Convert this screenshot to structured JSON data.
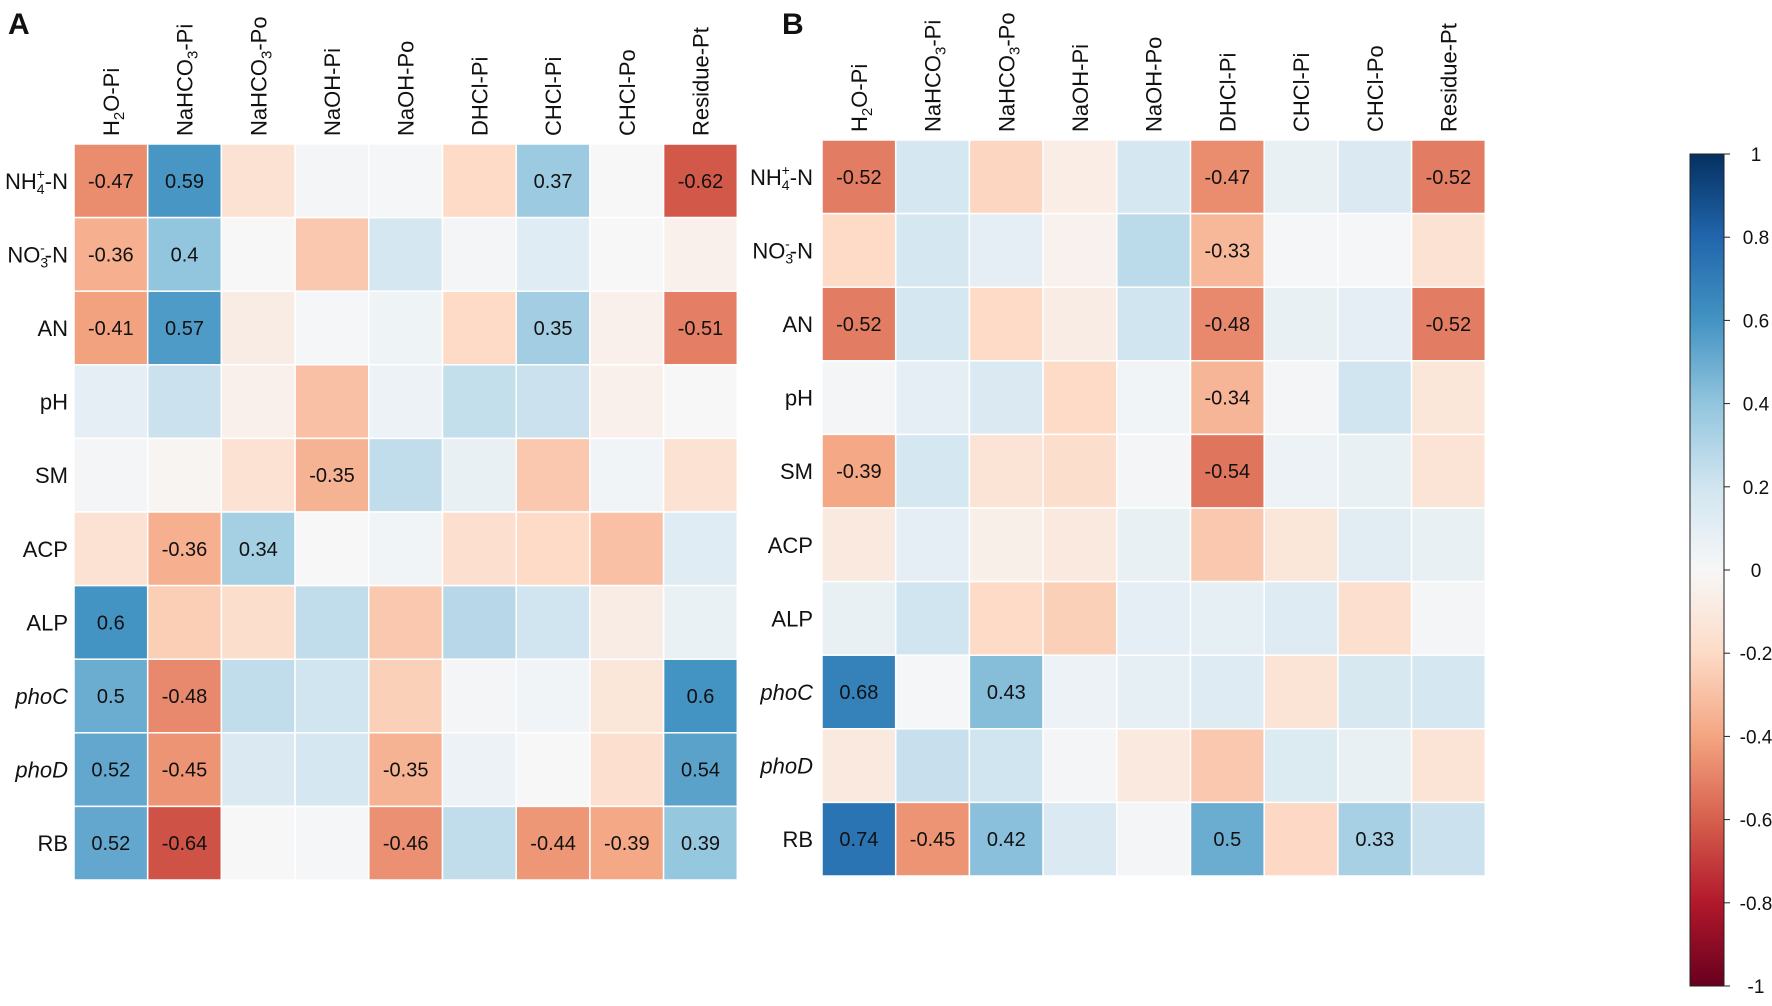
{
  "panels": [
    {
      "panel_label": "A",
      "chart_data": {
        "type": "heatmap",
        "title": "",
        "columns": [
          "H2O-Pi",
          "NaHCO3-Pi",
          "NaHCO3-Po",
          "NaOH-Pi",
          "NaOH-Po",
          "DHCl-Pi",
          "CHCl-Pi",
          "CHCl-Po",
          "Residue-Pt"
        ],
        "rows": [
          "NH4+-N",
          "NO3--N",
          "AN",
          "pH",
          "SM",
          "ACP",
          "ALP",
          "phoC",
          "phoD",
          "RB"
        ],
        "values": [
          [
            -0.47,
            0.59,
            -0.15,
            0.02,
            0.01,
            -0.2,
            0.37,
            0.0,
            -0.62
          ],
          [
            -0.36,
            0.4,
            0.0,
            -0.27,
            0.18,
            0.02,
            0.12,
            0.0,
            -0.05
          ],
          [
            -0.41,
            0.57,
            -0.08,
            0.01,
            0.05,
            -0.2,
            0.35,
            -0.05,
            -0.51
          ],
          [
            0.1,
            0.22,
            -0.05,
            -0.3,
            0.06,
            0.24,
            0.22,
            -0.05,
            0.0
          ],
          [
            0.02,
            -0.02,
            -0.15,
            -0.35,
            0.25,
            0.08,
            -0.27,
            0.03,
            -0.15
          ],
          [
            -0.15,
            -0.36,
            0.34,
            0.0,
            0.03,
            -0.17,
            -0.2,
            -0.3,
            0.12
          ],
          [
            0.6,
            -0.25,
            -0.18,
            0.25,
            -0.27,
            0.28,
            0.2,
            -0.08,
            0.07
          ],
          [
            0.5,
            -0.48,
            0.25,
            0.2,
            -0.24,
            0.02,
            0.03,
            -0.12,
            0.6
          ],
          [
            0.52,
            -0.45,
            0.15,
            0.18,
            -0.35,
            0.06,
            0.0,
            -0.17,
            0.54
          ],
          [
            0.52,
            -0.64,
            0.0,
            0.01,
            -0.46,
            0.25,
            -0.44,
            -0.39,
            0.39
          ]
        ],
        "labeled_cells_note": "numbers shown only where printed in the figure",
        "colorbar": {
          "ticks": [
            1,
            0.8,
            0.6,
            0.4,
            0.2,
            0,
            -0.2,
            -0.4,
            -0.6,
            -0.8,
            -1
          ],
          "range": [
            -1,
            1
          ]
        }
      },
      "shown_labels": [
        [
          true,
          true,
          false,
          false,
          false,
          false,
          true,
          false,
          true
        ],
        [
          true,
          true,
          false,
          false,
          false,
          false,
          false,
          false,
          false
        ],
        [
          true,
          true,
          false,
          false,
          false,
          false,
          true,
          false,
          true
        ],
        [
          false,
          false,
          false,
          false,
          false,
          false,
          false,
          false,
          false
        ],
        [
          false,
          false,
          false,
          true,
          false,
          false,
          false,
          false,
          false
        ],
        [
          false,
          true,
          true,
          false,
          false,
          false,
          false,
          false,
          false
        ],
        [
          true,
          false,
          false,
          false,
          false,
          false,
          false,
          false,
          false
        ],
        [
          true,
          true,
          false,
          false,
          false,
          false,
          false,
          false,
          true
        ],
        [
          true,
          true,
          false,
          false,
          true,
          false,
          false,
          false,
          true
        ],
        [
          true,
          true,
          false,
          false,
          true,
          false,
          true,
          true,
          true
        ]
      ]
    },
    {
      "panel_label": "B",
      "chart_data": {
        "type": "heatmap",
        "title": "",
        "columns": [
          "H2O-Pi",
          "NaHCO3-Pi",
          "NaHCO3-Po",
          "NaOH-Pi",
          "NaOH-Po",
          "DHCl-Pi",
          "CHCl-Pi",
          "CHCl-Po",
          "Residue-Pt"
        ],
        "rows": [
          "NH4+-N",
          "NO3--N",
          "AN",
          "pH",
          "SM",
          "ACP",
          "ALP",
          "phoC",
          "phoD",
          "RB"
        ],
        "values": [
          [
            -0.52,
            0.18,
            -0.22,
            -0.07,
            0.18,
            -0.47,
            0.08,
            0.15,
            -0.52
          ],
          [
            -0.2,
            0.18,
            0.1,
            -0.04,
            0.27,
            -0.33,
            0.01,
            0.01,
            -0.15
          ],
          [
            -0.52,
            0.18,
            -0.2,
            -0.08,
            0.2,
            -0.48,
            0.08,
            0.1,
            -0.52
          ],
          [
            0.02,
            0.1,
            0.15,
            -0.2,
            0.03,
            -0.34,
            0.02,
            0.2,
            -0.12
          ],
          [
            -0.39,
            0.18,
            -0.14,
            -0.18,
            0.02,
            -0.54,
            0.06,
            0.08,
            -0.14
          ],
          [
            -0.1,
            0.1,
            -0.06,
            -0.1,
            0.08,
            -0.27,
            -0.12,
            0.11,
            0.08
          ],
          [
            0.08,
            0.2,
            -0.2,
            -0.24,
            0.1,
            0.09,
            0.13,
            -0.17,
            0.02
          ],
          [
            0.68,
            0.01,
            0.43,
            0.06,
            0.09,
            0.13,
            -0.14,
            0.17,
            0.18
          ],
          [
            -0.1,
            0.23,
            0.2,
            0.02,
            -0.1,
            -0.27,
            0.14,
            0.08,
            -0.14
          ],
          [
            0.74,
            -0.45,
            0.42,
            0.15,
            0.02,
            0.5,
            -0.21,
            0.33,
            0.22
          ]
        ],
        "labeled_cells_note": "numbers shown only where printed in the figure",
        "colorbar": {
          "ticks": [
            1,
            0.8,
            0.6,
            0.4,
            0.2,
            0,
            -0.2,
            -0.4,
            -0.6,
            -0.8,
            -1
          ],
          "range": [
            -1,
            1
          ]
        }
      },
      "shown_labels": [
        [
          true,
          false,
          false,
          false,
          false,
          true,
          false,
          false,
          true
        ],
        [
          false,
          false,
          false,
          false,
          false,
          true,
          false,
          false,
          false
        ],
        [
          true,
          false,
          false,
          false,
          false,
          true,
          false,
          false,
          true
        ],
        [
          false,
          false,
          false,
          false,
          false,
          true,
          false,
          false,
          false
        ],
        [
          true,
          false,
          false,
          false,
          false,
          true,
          false,
          false,
          false
        ],
        [
          false,
          false,
          false,
          false,
          false,
          false,
          false,
          false,
          false
        ],
        [
          false,
          false,
          false,
          false,
          false,
          false,
          false,
          false,
          false
        ],
        [
          true,
          false,
          true,
          false,
          false,
          false,
          false,
          false,
          false
        ],
        [
          false,
          false,
          false,
          false,
          false,
          false,
          false,
          false,
          false
        ],
        [
          true,
          true,
          true,
          false,
          false,
          true,
          false,
          true,
          false
        ]
      ]
    }
  ],
  "colorbar": {
    "tick_labels": [
      "1",
      "0.8",
      "0.6",
      "0.4",
      "0.2",
      "0",
      "-0.2",
      "-0.4",
      "-0.6",
      "-0.8",
      "-1"
    ],
    "colors": [
      "#053061",
      "#2166ac",
      "#4393c3",
      "#92c5de",
      "#d1e5f0",
      "#f7f7f7",
      "#fddbc7",
      "#f4a582",
      "#d6604d",
      "#b2182b",
      "#67001f"
    ]
  },
  "column_labels": [
    {
      "main": "H",
      "sub": "2",
      "rest": "O-Pi"
    },
    {
      "main": "NaHCO",
      "sub": "3",
      "rest": "-Pi"
    },
    {
      "main": "NaHCO",
      "sub": "3",
      "rest": "-Po"
    },
    {
      "main": "NaOH-Pi",
      "sub": "",
      "rest": ""
    },
    {
      "main": "NaOH-Po",
      "sub": "",
      "rest": ""
    },
    {
      "main": "DHCl-Pi",
      "sub": "",
      "rest": ""
    },
    {
      "main": "CHCl-Pi",
      "sub": "",
      "rest": ""
    },
    {
      "main": "CHCl-Po",
      "sub": "",
      "rest": ""
    },
    {
      "main": "Residue-Pt",
      "sub": "",
      "rest": ""
    }
  ],
  "row_labels": [
    {
      "main": "NH",
      "sub": "4",
      "sup": "+",
      "rest": "-N",
      "italic": false
    },
    {
      "main": "NO",
      "sub": "3",
      "sup": "-",
      "rest": "-N",
      "italic": false
    },
    {
      "main": "AN",
      "sub": "",
      "sup": "",
      "rest": "",
      "italic": false
    },
    {
      "main": "pH",
      "sub": "",
      "sup": "",
      "rest": "",
      "italic": false
    },
    {
      "main": "SM",
      "sub": "",
      "sup": "",
      "rest": "",
      "italic": false
    },
    {
      "main": "ACP",
      "sub": "",
      "sup": "",
      "rest": "",
      "italic": false
    },
    {
      "main": "ALP",
      "sub": "",
      "sup": "",
      "rest": "",
      "italic": false
    },
    {
      "main": "phoC",
      "sub": "",
      "sup": "",
      "rest": "",
      "italic": true
    },
    {
      "main": "phoD",
      "sub": "",
      "sup": "",
      "rest": "",
      "italic": true
    },
    {
      "main": "RB",
      "sub": "",
      "sup": "",
      "rest": "",
      "italic": false
    }
  ]
}
